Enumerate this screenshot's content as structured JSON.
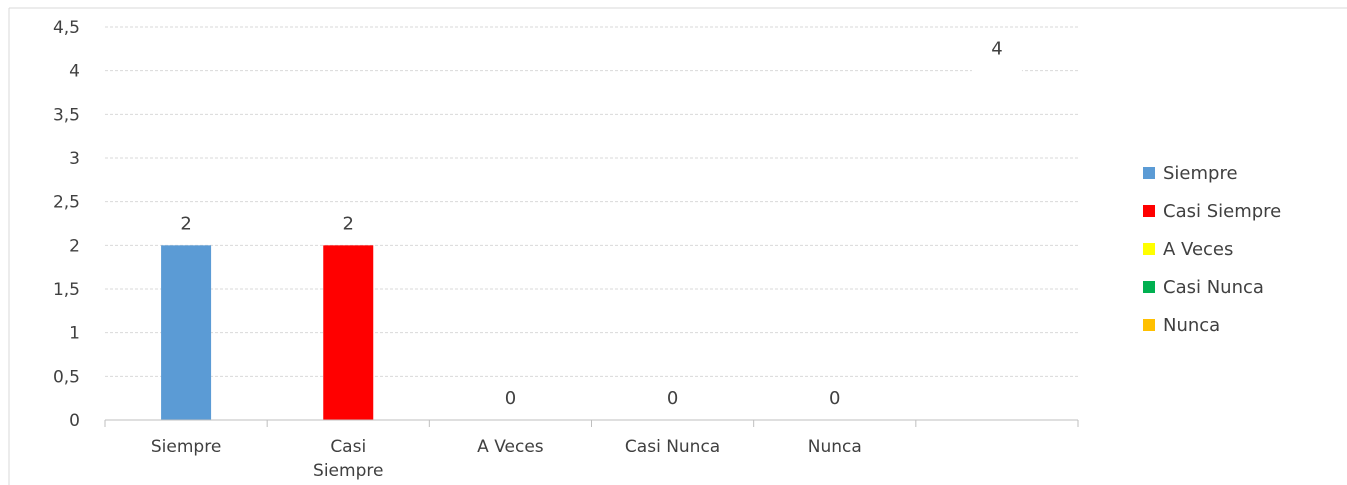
{
  "chart_data": {
    "type": "bar",
    "title": "",
    "xlabel": "",
    "ylabel": "",
    "ylim": [
      0,
      4.5
    ],
    "y_ticks": [
      "0",
      "0,5",
      "1",
      "1,5",
      "2",
      "2,5",
      "3",
      "3,5",
      "4",
      "4,5"
    ],
    "grid": true,
    "legend_position": "right",
    "categories": [
      "Siempre",
      "Casi Siempre",
      "A Veces",
      "Casi Nunca",
      "Nunca"
    ],
    "category_labels": [
      [
        "Siempre"
      ],
      [
        "Casi",
        "Siempre"
      ],
      [
        "A Veces"
      ],
      [
        "Casi Nunca"
      ],
      [
        "Nunca"
      ]
    ],
    "values": [
      2,
      2,
      0,
      0,
      0
    ],
    "value_labels": [
      "2",
      "2",
      "0",
      "0",
      "0"
    ],
    "colors": [
      "#5b9bd5",
      "#ff0000",
      "#ffff00",
      "#00b050",
      "#ffc000"
    ],
    "extra_category": {
      "value": 4,
      "value_label": "4"
    },
    "legend": [
      {
        "label": "Siempre",
        "color": "#5b9bd5"
      },
      {
        "label": "Casi Siempre",
        "color": "#ff0000"
      },
      {
        "label": "A Veces",
        "color": "#ffff00"
      },
      {
        "label": "Casi Nunca",
        "color": "#00b050"
      },
      {
        "label": "Nunca",
        "color": "#ffc000"
      }
    ]
  }
}
